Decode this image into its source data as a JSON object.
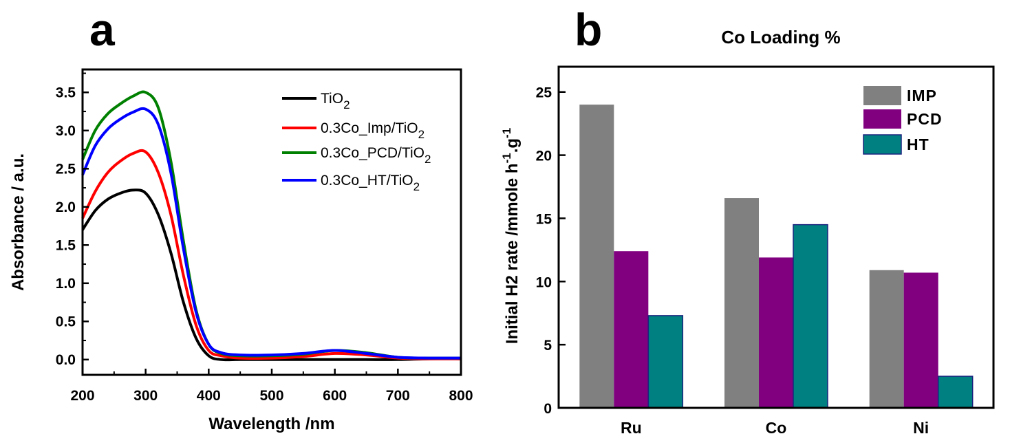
{
  "panels": {
    "a_label": "a",
    "b_label": "b"
  },
  "chart_data": [
    {
      "type": "line",
      "panel": "a",
      "title": "",
      "xlabel": "Wavelength /nm",
      "ylabel": "Absorbance / a.u.",
      "xlim": [
        200,
        800
      ],
      "ylim": [
        -0.2,
        3.8
      ],
      "xticks": [
        "200",
        "300",
        "400",
        "500",
        "600",
        "700",
        "800"
      ],
      "yticks": [
        "0.0",
        "0.5",
        "1.0",
        "1.5",
        "2.0",
        "2.5",
        "3.0",
        "3.5"
      ],
      "grid": false,
      "legend_position": "top-right",
      "series": [
        {
          "name": "TiO",
          "name_sub": "2",
          "color": "#000000",
          "x": [
            200,
            220,
            240,
            260,
            280,
            300,
            320,
            340,
            360,
            380,
            400,
            420,
            450,
            500,
            550,
            600,
            650,
            700,
            750,
            800
          ],
          "y": [
            1.7,
            1.95,
            2.1,
            2.18,
            2.22,
            2.18,
            1.9,
            1.4,
            0.75,
            0.28,
            0.05,
            0.0,
            0.0,
            0.0,
            0.0,
            0.0,
            0.0,
            0.0,
            0.01,
            0.01
          ]
        },
        {
          "name": "0.3Co_Imp/TiO",
          "name_sub": "2",
          "color": "#ff0000",
          "x": [
            200,
            220,
            240,
            260,
            280,
            300,
            320,
            340,
            360,
            380,
            400,
            420,
            450,
            500,
            550,
            600,
            650,
            700,
            750,
            800
          ],
          "y": [
            1.85,
            2.2,
            2.45,
            2.6,
            2.7,
            2.72,
            2.45,
            1.9,
            1.1,
            0.45,
            0.12,
            0.05,
            0.02,
            0.02,
            0.04,
            0.08,
            0.06,
            0.02,
            0.01,
            0.01
          ]
        },
        {
          "name": "0.3Co_PCD/TiO",
          "name_sub": "2",
          "color": "#008000",
          "x": [
            200,
            220,
            240,
            260,
            280,
            300,
            320,
            340,
            360,
            380,
            400,
            420,
            450,
            500,
            550,
            600,
            650,
            700,
            750,
            800
          ],
          "y": [
            2.62,
            3.0,
            3.22,
            3.35,
            3.45,
            3.5,
            3.3,
            2.6,
            1.55,
            0.65,
            0.2,
            0.08,
            0.05,
            0.05,
            0.07,
            0.12,
            0.09,
            0.03,
            0.02,
            0.02
          ]
        },
        {
          "name": "0.3Co_HT/TiO",
          "name_sub": "2",
          "color": "#0000ff",
          "x": [
            200,
            220,
            240,
            260,
            280,
            300,
            320,
            340,
            360,
            380,
            400,
            420,
            450,
            500,
            550,
            600,
            650,
            700,
            750,
            800
          ],
          "y": [
            2.42,
            2.8,
            3.02,
            3.15,
            3.24,
            3.28,
            3.08,
            2.45,
            1.45,
            0.62,
            0.2,
            0.09,
            0.06,
            0.06,
            0.08,
            0.12,
            0.08,
            0.03,
            0.02,
            0.02
          ]
        }
      ]
    },
    {
      "type": "bar",
      "panel": "b",
      "title": "Co Loading %",
      "xlabel": "",
      "ylabel": "Initial H2 rate /mmole h",
      "ylabel_sup1": "-1",
      "ylabel_mid": ".g",
      "ylabel_sup2": "-1",
      "ylim": [
        0,
        27
      ],
      "yticks": [
        "0",
        "5",
        "10",
        "15",
        "20",
        "25"
      ],
      "grid": false,
      "legend_position": "top-right",
      "categories": [
        "Ru",
        "Co",
        "Ni"
      ],
      "series": [
        {
          "name": "IMP",
          "color": "#808080",
          "values": [
            24.0,
            16.6,
            10.9
          ]
        },
        {
          "name": "PCD",
          "color": "#800080",
          "values": [
            12.4,
            11.9,
            10.7
          ]
        },
        {
          "name": "HT",
          "color": "#008080",
          "values": [
            7.3,
            14.5,
            2.5
          ]
        }
      ]
    }
  ]
}
